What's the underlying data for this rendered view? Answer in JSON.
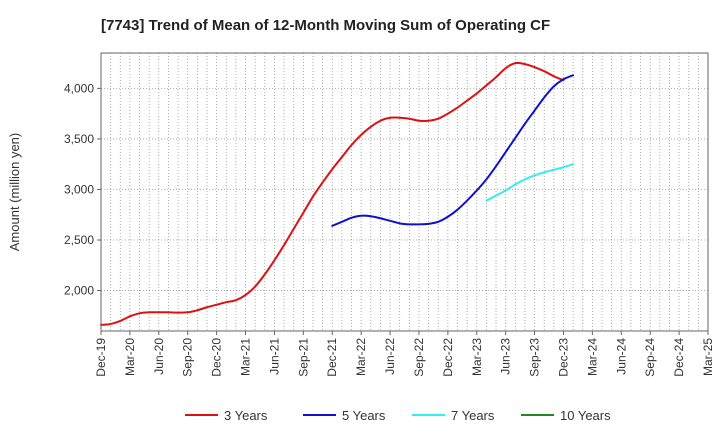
{
  "chart_data": {
    "type": "line",
    "title": "[7743]  Trend of Mean of 12-Month Moving Sum of Operating CF",
    "xlabel": "",
    "ylabel": "Amount (million yen)",
    "x_ticks": [
      "Dec-19",
      "Mar-20",
      "Jun-20",
      "Sep-20",
      "Dec-20",
      "Mar-21",
      "Jun-21",
      "Sep-21",
      "Dec-21",
      "Mar-22",
      "Jun-22",
      "Sep-22",
      "Dec-22",
      "Mar-23",
      "Jun-23",
      "Sep-23",
      "Dec-23",
      "Mar-24",
      "Jun-24",
      "Sep-24",
      "Dec-24",
      "Mar-25"
    ],
    "y_ticks": [
      2000,
      2500,
      3000,
      3500,
      4000
    ],
    "y_tick_labels": [
      "2,000",
      "2,500",
      "3,000",
      "3,500",
      "4,000"
    ],
    "ylim": [
      1600,
      4350
    ],
    "grid": true,
    "legend_position": "bottom",
    "series": [
      {
        "name": "3 Years",
        "color": "#dd1111",
        "start_index": 0,
        "values": [
          1660,
          1670,
          1700,
          1745,
          1775,
          1785,
          1785,
          1785,
          1782,
          1785,
          1805,
          1835,
          1860,
          1885,
          1905,
          1955,
          2040,
          2160,
          2300,
          2450,
          2610,
          2770,
          2930,
          3070,
          3200,
          3320,
          3440,
          3540,
          3620,
          3680,
          3710,
          3710,
          3700,
          3680,
          3680,
          3700,
          3750,
          3810,
          3880,
          3950,
          4030,
          4110,
          4200,
          4250,
          4240,
          4210,
          4170,
          4120,
          4080
        ]
      },
      {
        "name": "5 Years",
        "color": "#1111cc",
        "start_index": 24,
        "values": [
          2640,
          2680,
          2720,
          2740,
          2735,
          2715,
          2690,
          2665,
          2655,
          2655,
          2660,
          2680,
          2730,
          2800,
          2890,
          2990,
          3100,
          3230,
          3370,
          3510,
          3650,
          3780,
          3910,
          4020,
          4090,
          4130
        ]
      },
      {
        "name": "7 Years",
        "color": "#33eeee",
        "start_index": 40,
        "values": [
          2890,
          2940,
          2990,
          3050,
          3100,
          3140,
          3170,
          3195,
          3220,
          3250
        ]
      },
      {
        "name": "10 Years",
        "color": "#228822",
        "start_index": 0,
        "values": []
      }
    ]
  }
}
